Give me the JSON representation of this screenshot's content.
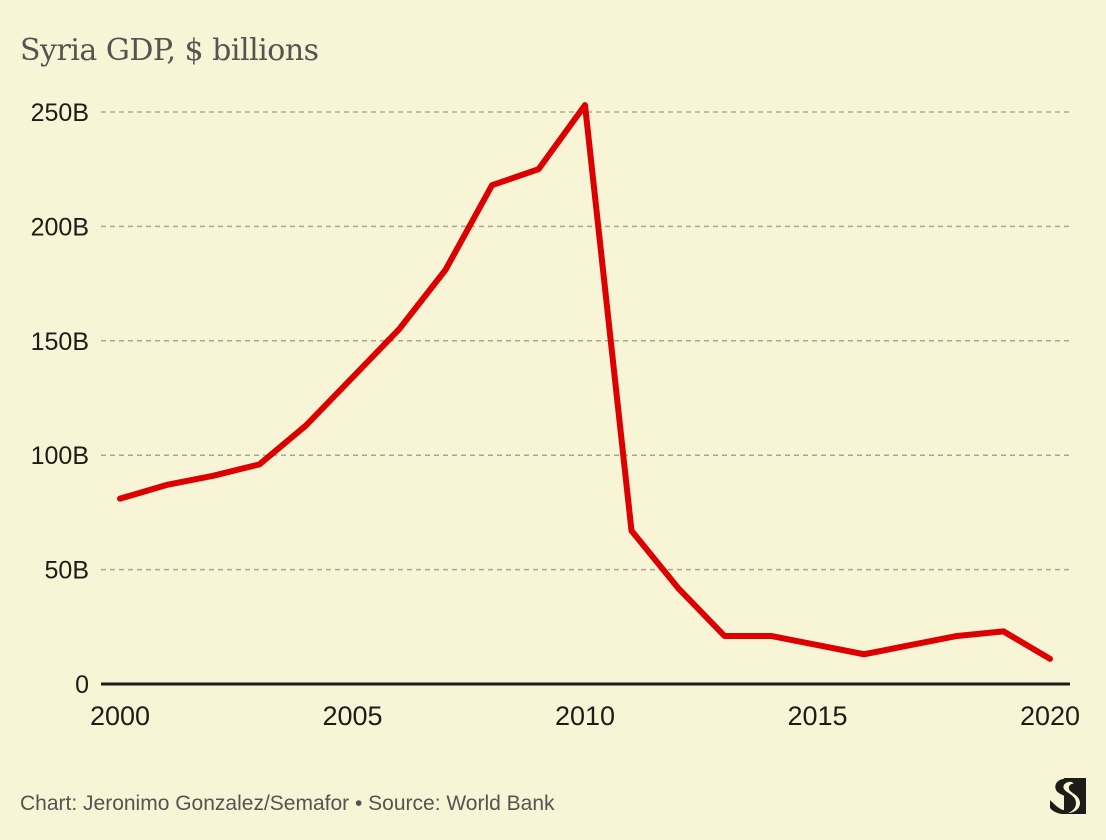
{
  "chart_data": {
    "type": "line",
    "title": "Syria GDP, $ billions",
    "xlabel": "",
    "ylabel": "",
    "x": [
      2000,
      2001,
      2002,
      2003,
      2004,
      2005,
      2006,
      2007,
      2008,
      2009,
      2010,
      2011,
      2012,
      2013,
      2014,
      2015,
      2016,
      2017,
      2018,
      2019,
      2020
    ],
    "series": [
      {
        "name": "Syria GDP",
        "color": "#dc0000",
        "values": [
          81,
          87,
          91,
          96,
          113,
          134,
          155,
          181,
          218,
          225,
          253,
          67,
          42,
          21,
          21,
          17,
          13,
          17,
          21,
          23,
          11
        ]
      }
    ],
    "xlim": [
      2000,
      2020
    ],
    "ylim": [
      0,
      250
    ],
    "x_ticks": [
      {
        "value": 2000,
        "label": "2000"
      },
      {
        "value": 2005,
        "label": "2005"
      },
      {
        "value": 2010,
        "label": "2010"
      },
      {
        "value": 2015,
        "label": "2015"
      },
      {
        "value": 2020,
        "label": "2020"
      }
    ],
    "y_ticks": [
      {
        "value": 0,
        "label": "0"
      },
      {
        "value": 50,
        "label": "50B"
      },
      {
        "value": 100,
        "label": "100B"
      },
      {
        "value": 150,
        "label": "150B"
      },
      {
        "value": 200,
        "label": "200B"
      },
      {
        "value": 250,
        "label": "250B"
      }
    ],
    "grid": true,
    "legend": "none"
  },
  "footer": {
    "credit": "Chart: Jeronimo Gonzalez/Semafor • Source: World Bank"
  },
  "logo": {
    "icon": "semafor-s-logo"
  },
  "colors": {
    "background": "#f8f4d6",
    "line": "#dc0000",
    "text": "#1d1c18",
    "muted_text": "#555450",
    "grid": "#a8a69a"
  }
}
